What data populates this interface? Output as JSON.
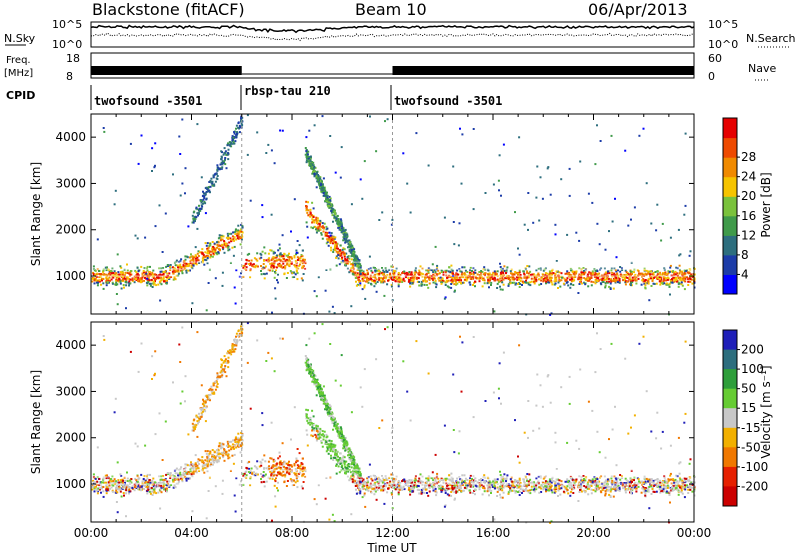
{
  "header": {
    "station": "Blackstone (fitACF)",
    "beam": "Beam 10",
    "date": "06/Apr/2013"
  },
  "noise_panel": {
    "left_label": "N.Sky",
    "left_ticks": [
      "10^5",
      "10^0"
    ],
    "right_label": "N.Search",
    "right_ticks": [
      "10^5",
      "10^0"
    ]
  },
  "freq_panel": {
    "left_label_line1": "Freq.",
    "left_label_line2": "[MHz]",
    "left_ticks": [
      "18",
      "8"
    ],
    "right_label": "Nave",
    "right_ticks": [
      "60",
      "0"
    ]
  },
  "cpid_panel": {
    "label": "CPID",
    "segments": [
      {
        "name": "twofsound -3501",
        "start_h": 0,
        "end_h": 6
      },
      {
        "name": "rbsp-tau 210",
        "start_h": 6,
        "end_h": 12
      },
      {
        "name": "twofsound -3501",
        "start_h": 12,
        "end_h": 24
      }
    ]
  },
  "chart_data": [
    {
      "type": "heatmap",
      "name": "Power",
      "xlabel": "Time UT",
      "ylabel": "Slant Range [km]",
      "xlim": [
        0,
        24
      ],
      "ylim": [
        180,
        4500
      ],
      "yticks": [
        1000,
        2000,
        3000,
        4000
      ],
      "colorbar": {
        "label": "Power [dB]",
        "range": [
          0,
          32
        ],
        "ticks": [
          4,
          8,
          12,
          16,
          20,
          24,
          28
        ],
        "colors": [
          "#0000ff",
          "#1c3ca8",
          "#2d6e7e",
          "#3f9a4a",
          "#7ac23c",
          "#f6c400",
          "#f08a00",
          "#ee4a00",
          "#e60000"
        ]
      }
    },
    {
      "type": "heatmap",
      "name": "Velocity",
      "xlabel": "Time UT",
      "ylabel": "Slant Range [km]",
      "xlim": [
        0,
        24
      ],
      "ylim": [
        180,
        4500
      ],
      "yticks": [
        1000,
        2000,
        3000,
        4000
      ],
      "xticks": [
        "00:00",
        "04:00",
        "08:00",
        "12:00",
        "16:00",
        "20:00",
        "00:00"
      ],
      "colorbar": {
        "label": "Velocity [m s⁻¹]",
        "tick_labels": [
          "200",
          "100",
          "50",
          "15",
          "-15",
          "-50",
          "-100",
          "-200"
        ],
        "colors": [
          "#1f1fb8",
          "#2d6e7e",
          "#2e9e3a",
          "#66cc33",
          "#c8c8c8",
          "#f2b000",
          "#f07800",
          "#e62000",
          "#cc0000"
        ]
      }
    }
  ],
  "xaxis": {
    "title": "Time UT",
    "tick_labels": [
      "00:00",
      "04:00",
      "08:00",
      "12:00",
      "16:00",
      "20:00",
      "00:00"
    ]
  }
}
